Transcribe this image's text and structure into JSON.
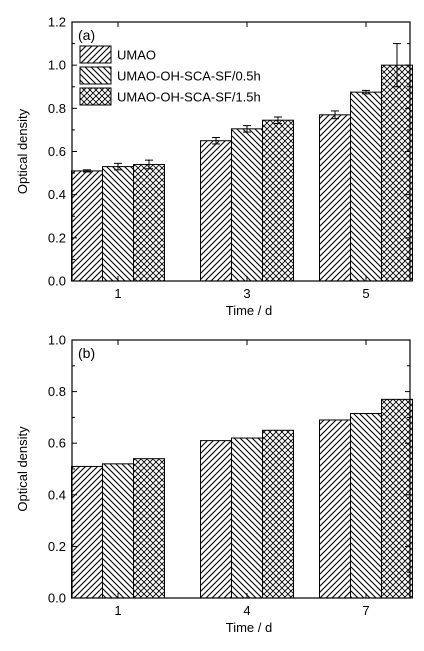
{
  "chart_data": [
    {
      "type": "bar",
      "panel_label": "(a)",
      "categories": [
        "1",
        "3",
        "5"
      ],
      "xlabel": "Time / d",
      "ylabel": "Optical density",
      "ylim": [
        0,
        1.2
      ],
      "yticks": [
        "0.0",
        "0.2",
        "0.4",
        "0.6",
        "0.8",
        "1.0",
        "1.2"
      ],
      "legend_position": "top-left",
      "series": [
        {
          "name": "UMAO",
          "pattern": "diagonal-up",
          "values": [
            0.51,
            0.65,
            0.77
          ],
          "errors": [
            0.005,
            0.015,
            0.018
          ]
        },
        {
          "name": "UMAO-OH-SCA-SF/0.5h",
          "pattern": "diagonal-down",
          "values": [
            0.53,
            0.705,
            0.875
          ],
          "errors": [
            0.015,
            0.015,
            0.008
          ]
        },
        {
          "name": "UMAO-OH-SCA-SF/1.5h",
          "pattern": "crosshatch",
          "values": [
            0.54,
            0.745,
            1.0
          ],
          "errors": [
            0.02,
            0.015,
            0.1
          ]
        }
      ]
    },
    {
      "type": "bar",
      "panel_label": "(b)",
      "categories": [
        "1",
        "4",
        "7"
      ],
      "xlabel": "Time / d",
      "ylabel": "Optical density",
      "ylim": [
        0,
        1.0
      ],
      "yticks": [
        "0.0",
        "0.2",
        "0.4",
        "0.6",
        "0.8",
        "1.0"
      ],
      "series": [
        {
          "pattern": "diagonal-up",
          "values": [
            0.51,
            0.61,
            0.69
          ]
        },
        {
          "pattern": "diagonal-down",
          "values": [
            0.52,
            0.62,
            0.715
          ]
        },
        {
          "pattern": "crosshatch",
          "values": [
            0.54,
            0.65,
            0.77
          ]
        }
      ]
    }
  ]
}
